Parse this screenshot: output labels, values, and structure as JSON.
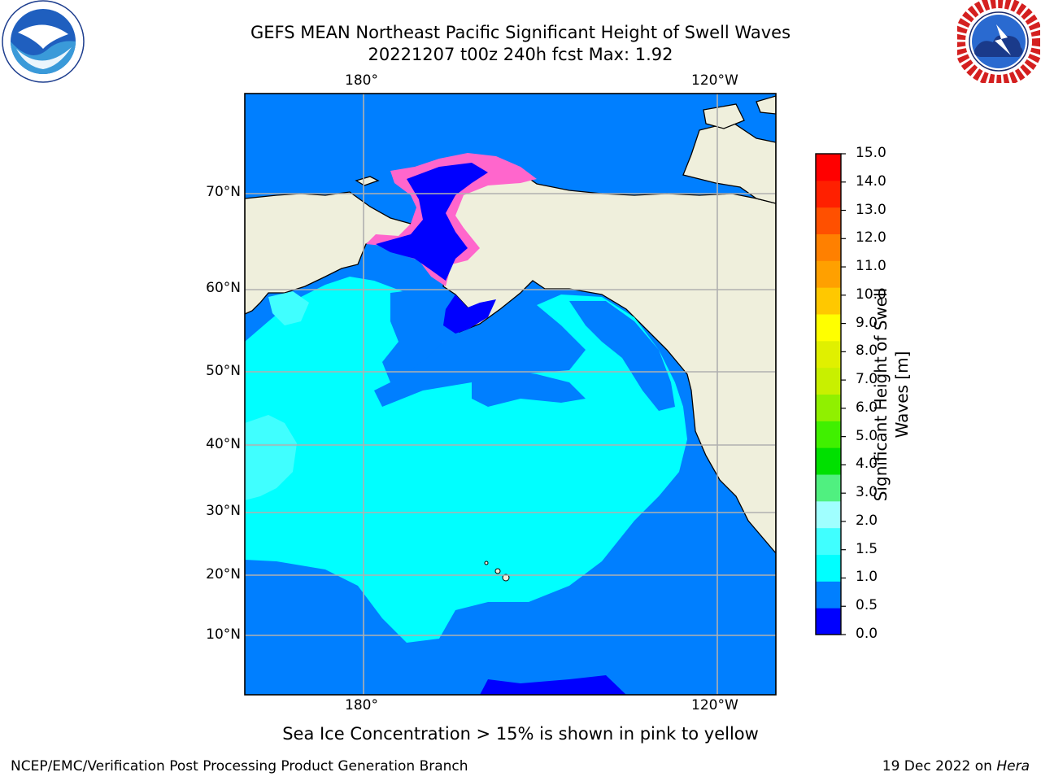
{
  "title": {
    "line1": "GEFS MEAN Northeast Pacific Significant Height of Swell Waves",
    "line2": "20221207 t00z 240h fcst   Max: 1.92"
  },
  "map": {
    "lon_labels_top": [
      "180°",
      "120°W"
    ],
    "lon_labels_bottom": [
      "180°",
      "120°W"
    ],
    "lat_labels": [
      "70°N",
      "60°N",
      "50°N",
      "40°N",
      "30°N",
      "20°N",
      "10°N"
    ],
    "colors": {
      "land": "#efefdc",
      "coast": "#000000",
      "grid": "#b0b0b0",
      "band_0_0_5": "#0000ff",
      "band_0_5_1_0": "#007fff",
      "band_1_0_1_5": "#00ffff",
      "band_1_5_2_0": "#40ffff",
      "ice": "#ff66cc"
    }
  },
  "colorbar": {
    "label": "Significant Height of Swell Waves [m]",
    "ticks": [
      "0.0",
      "0.5",
      "1.0",
      "1.5",
      "2.0",
      "3.0",
      "4.0",
      "5.0",
      "6.0",
      "7.0",
      "8.0",
      "9.0",
      "10.0",
      "11.0",
      "12.0",
      "13.0",
      "14.0",
      "15.0"
    ],
    "colors": [
      "#0000ff",
      "#007fff",
      "#00ffff",
      "#40ffff",
      "#a0ffff",
      "#50f080",
      "#00e000",
      "#40f000",
      "#90f000",
      "#c8f000",
      "#e0f000",
      "#ffff00",
      "#ffc800",
      "#ffa000",
      "#ff8000",
      "#ff5000",
      "#ff2000",
      "#ff0000"
    ]
  },
  "footer": {
    "note": "Sea Ice Concentration > 15% is shown in pink to yellow",
    "left": "NCEP/EMC/Verification Post Processing Product Generation Branch",
    "right_date": "19 Dec 2022 on",
    "right_host": "Hera"
  }
}
